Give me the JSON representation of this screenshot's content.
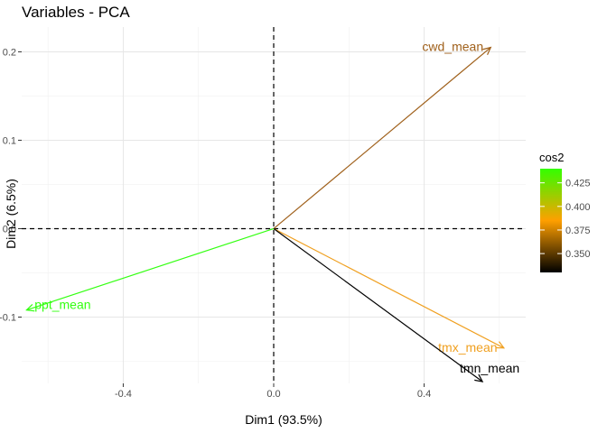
{
  "chart_data": {
    "type": "scatter",
    "title": "Variables - PCA",
    "xlabel": "Dim1 (93.5%)",
    "ylabel": "Dim2 (6.5%)",
    "xlim": [
      -0.67,
      0.67
    ],
    "ylim": [
      -0.175,
      0.228
    ],
    "x_ticks": [
      -0.4,
      0.0,
      0.4
    ],
    "x_tick_labels": [
      "-0.4",
      "0.0",
      "0.4"
    ],
    "y_ticks": [
      -0.1,
      0.0,
      0.1,
      0.2
    ],
    "y_tick_labels": [
      "-0.1",
      "0.0",
      "0.1",
      "0.2"
    ],
    "grid": true,
    "variables": [
      {
        "name": "cwd_mean",
        "x": 0.577,
        "y": 0.205,
        "color": "#a0611c"
      },
      {
        "name": "ppt_mean",
        "x": -0.657,
        "y": -0.092,
        "color": "#33ff11"
      },
      {
        "name": "tmx_mean",
        "x": 0.612,
        "y": -0.135,
        "color": "#f0a020"
      },
      {
        "name": "tmn_mean",
        "x": 0.555,
        "y": -0.173,
        "color": "#000000"
      }
    ],
    "legend": {
      "title": "cos2",
      "position": "right",
      "ticks": [
        0.35,
        0.375,
        0.4,
        0.425
      ],
      "tick_labels": [
        "0.350",
        "0.375",
        "0.400",
        "0.425"
      ],
      "range": [
        0.33,
        0.44
      ],
      "gradient_colors": [
        "#000000",
        "#ff9f00",
        "#33ff00"
      ]
    }
  }
}
